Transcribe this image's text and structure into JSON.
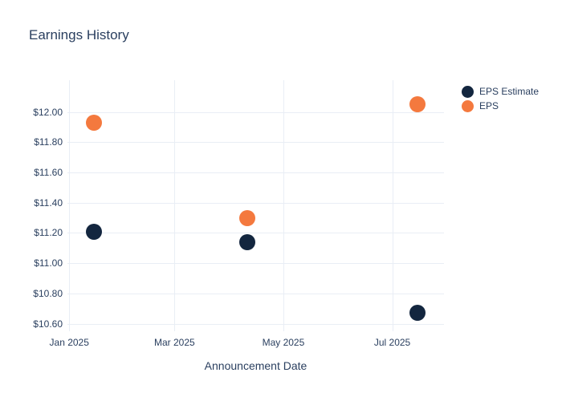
{
  "chart_data": {
    "type": "scatter",
    "title": "Earnings History",
    "xlabel": "Announcement Date",
    "ylabel": "",
    "x": [
      "2025-01-15",
      "2025-04-11",
      "2025-07-15"
    ],
    "series": [
      {
        "name": "EPS Estimate",
        "color": "#13263f",
        "values": [
          11.21,
          11.14,
          10.67
        ]
      },
      {
        "name": "EPS",
        "color": "#f4793e",
        "values": [
          11.93,
          11.3,
          12.05
        ]
      }
    ],
    "xlim": [
      "2024-12-31",
      "2025-07-30"
    ],
    "ylim": [
      10.55,
      12.21
    ],
    "xticks": [
      {
        "date": "2025-01-01",
        "label": "Jan 2025"
      },
      {
        "date": "2025-03-01",
        "label": "Mar 2025"
      },
      {
        "date": "2025-05-01",
        "label": "May 2025"
      },
      {
        "date": "2025-07-01",
        "label": "Jul 2025"
      }
    ],
    "yticks": [
      {
        "value": 10.6,
        "label": "$10.60"
      },
      {
        "value": 10.8,
        "label": "$10.80"
      },
      {
        "value": 11.0,
        "label": "$11.00"
      },
      {
        "value": 11.2,
        "label": "$11.20"
      },
      {
        "value": 11.4,
        "label": "$11.40"
      },
      {
        "value": 11.6,
        "label": "$11.60"
      },
      {
        "value": 11.8,
        "label": "$11.80"
      },
      {
        "value": 12.0,
        "label": "$12.00"
      }
    ],
    "grid": true,
    "legend_position": "outside-top-right",
    "marker_size_px": 20,
    "colors": {
      "text": "#2a3f5f",
      "grid": "#e9eef5",
      "background": "#ffffff"
    }
  }
}
